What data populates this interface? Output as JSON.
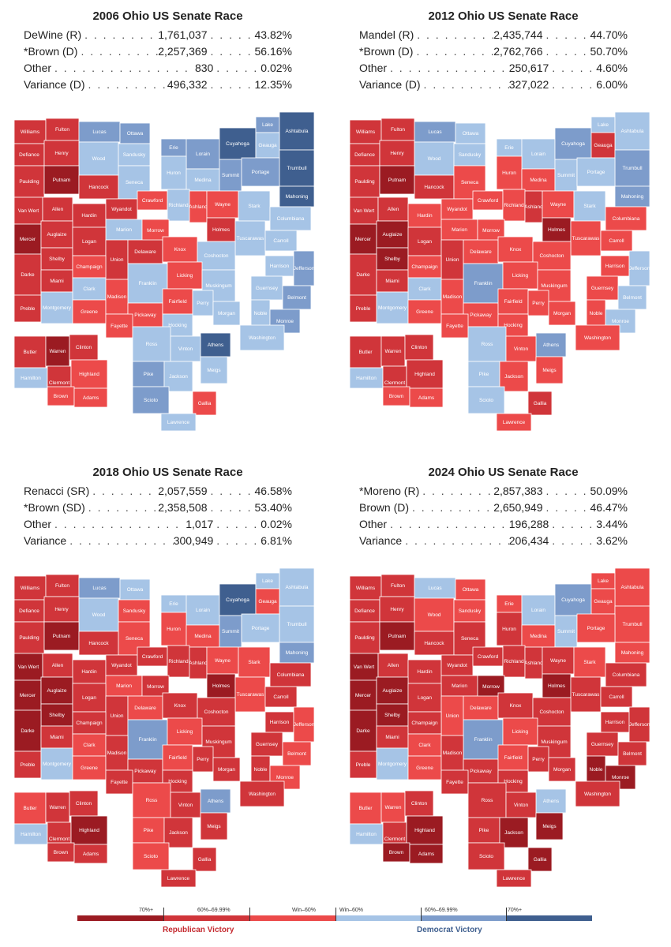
{
  "panels": [
    {
      "title": "2006 Ohio US Senate Race",
      "rows": [
        {
          "name": "DeWine (R)",
          "votes": "1,761,037",
          "pct": "43.82%"
        },
        {
          "name": "*Brown (D)",
          "votes": "2,257,369",
          "pct": "56.16%"
        },
        {
          "name": "Other",
          "votes": "830",
          "pct": "0.02%"
        },
        {
          "name": "Variance (D)",
          "votes": "496,332",
          "pct": "12.35%"
        }
      ],
      "counties": {
        "Williams": "r2",
        "Fulton": "r2",
        "Lucas": "d2",
        "Ottawa": "d2",
        "Defiance": "r2",
        "Henry": "r2",
        "Wood": "d1",
        "Sandusky": "d1",
        "Erie": "d2",
        "Lorain": "d2",
        "Cuyahoga": "d3",
        "Lake": "d2",
        "Ashtabula": "d3",
        "Geauga": "d1",
        "Trumbull": "d3",
        "Paulding": "r2",
        "Putnam": "r3",
        "Hancock": "r2",
        "Seneca": "d1",
        "Huron": "d1",
        "Medina": "d1",
        "Summit": "d2",
        "Portage": "d2",
        "Mahoning": "d3",
        "Van Wert": "r2",
        "Allen": "r2",
        "Hardin": "r2",
        "Wyandot": "r2",
        "Crawford": "r1",
        "Richland": "d1",
        "Ashland": "r1",
        "Wayne": "r1",
        "Stark": "d1",
        "Columbiana": "d1",
        "Mercer": "r3",
        "Auglaize": "r2",
        "Marion": "d1",
        "Morrow": "r1",
        "Holmes": "r2",
        "Tuscarawas": "d1",
        "Carroll": "d1",
        "Shelby": "r2",
        "Logan": "r2",
        "Union": "r2",
        "Delaware": "r2",
        "Knox": "r1",
        "Coshocton": "d1",
        "Harrison": "d1",
        "Jefferson": "d2",
        "Darke": "r2",
        "Miami": "r2",
        "Champaign": "r1",
        "Franklin": "d1",
        "Licking": "r1",
        "Muskingum": "d1",
        "Guernsey": "d1",
        "Belmont": "d2",
        "Clark": "d1",
        "Preble": "r2",
        "Montgomery": "d1",
        "Greene": "r1",
        "Madison": "r1",
        "Pickaway": "r1",
        "Fairfield": "r1",
        "Perry": "d1",
        "Morgan": "d1",
        "Noble": "d1",
        "Monroe": "d2",
        "Fayette": "r1",
        "Hocking": "d1",
        "Washington": "d1",
        "Butler": "r2",
        "Warren": "r3",
        "Clinton": "r2",
        "Ross": "d1",
        "Athens": "d3",
        "Vinton": "d1",
        "Hamilton": "d1",
        "Clermont": "r2",
        "Highland": "r1",
        "Pike": "d2",
        "Jackson": "d1",
        "Meigs": "d1",
        "Brown": "r1",
        "Adams": "r1",
        "Scioto": "d2",
        "Gallia": "r1",
        "Lawrence": "d1"
      }
    },
    {
      "title": "2012 Ohio US Senate Race",
      "rows": [
        {
          "name": "Mandel (R)",
          "votes": "2,435,744",
          "pct": "44.70%"
        },
        {
          "name": "*Brown (D)",
          "votes": "2,762,766",
          "pct": "50.70%"
        },
        {
          "name": "Other",
          "votes": "250,617",
          "pct": "4.60%"
        },
        {
          "name": "Variance (D)",
          "votes": "327,022",
          "pct": "6.00%"
        }
      ],
      "counties": {
        "Williams": "r2",
        "Fulton": "r2",
        "Lucas": "d2",
        "Ottawa": "d1",
        "Defiance": "r2",
        "Henry": "r2",
        "Wood": "d1",
        "Sandusky": "d1",
        "Erie": "d1",
        "Lorain": "d1",
        "Cuyahoga": "d2",
        "Lake": "d1",
        "Ashtabula": "d1",
        "Geauga": "r2",
        "Trumbull": "d2",
        "Paulding": "r2",
        "Putnam": "r3",
        "Hancock": "r2",
        "Seneca": "r1",
        "Huron": "r1",
        "Medina": "r1",
        "Summit": "d1",
        "Portage": "d1",
        "Mahoning": "d2",
        "Van Wert": "r2",
        "Allen": "r2",
        "Hardin": "r1",
        "Wyandot": "r1",
        "Crawford": "r1",
        "Richland": "r1",
        "Ashland": "r2",
        "Wayne": "r1",
        "Stark": "d1",
        "Columbiana": "r1",
        "Mercer": "r3",
        "Auglaize": "r3",
        "Marion": "r1",
        "Morrow": "r1",
        "Holmes": "r3",
        "Tuscarawas": "r1",
        "Carroll": "r1",
        "Shelby": "r3",
        "Logan": "r2",
        "Union": "r2",
        "Delaware": "r1",
        "Knox": "r1",
        "Coshocton": "r1",
        "Harrison": "r1",
        "Jefferson": "d1",
        "Darke": "r2",
        "Miami": "r2",
        "Champaign": "r1",
        "Franklin": "d2",
        "Licking": "r1",
        "Muskingum": "r1",
        "Guernsey": "r1",
        "Belmont": "d1",
        "Clark": "d1",
        "Preble": "r2",
        "Montgomery": "d1",
        "Greene": "r1",
        "Madison": "r1",
        "Pickaway": "r1",
        "Fairfield": "r1",
        "Perry": "r1",
        "Morgan": "r1",
        "Noble": "r1",
        "Monroe": "d1",
        "Fayette": "r1",
        "Hocking": "r1",
        "Washington": "r1",
        "Butler": "r2",
        "Warren": "r2",
        "Clinton": "r2",
        "Ross": "d1",
        "Athens": "d2",
        "Vinton": "r1",
        "Hamilton": "d1",
        "Clermont": "r2",
        "Highland": "r2",
        "Pike": "d1",
        "Jackson": "r1",
        "Meigs": "r1",
        "Brown": "r1",
        "Adams": "r1",
        "Scioto": "d1",
        "Gallia": "r2",
        "Lawrence": "r1"
      }
    },
    {
      "title": "2018 Ohio US Senate Race",
      "rows": [
        {
          "name": "Renacci (SR)",
          "votes": "2,057,559",
          "pct": "46.58%"
        },
        {
          "name": "*Brown (SD)",
          "votes": "2,358,508",
          "pct": "53.40%"
        },
        {
          "name": "Other",
          "votes": "1,017",
          "pct": "0.02%"
        },
        {
          "name": "Variance",
          "votes": "300,949",
          "pct": "6.81%"
        }
      ],
      "counties": {
        "Williams": "r2",
        "Fulton": "r2",
        "Lucas": "d2",
        "Ottawa": "d1",
        "Defiance": "r2",
        "Henry": "r2",
        "Wood": "d1",
        "Sandusky": "r1",
        "Erie": "d1",
        "Lorain": "d1",
        "Cuyahoga": "d3",
        "Lake": "d1",
        "Ashtabula": "d1",
        "Geauga": "r1",
        "Trumbull": "d1",
        "Paulding": "r2",
        "Putnam": "r3",
        "Hancock": "r2",
        "Seneca": "r1",
        "Huron": "r1",
        "Medina": "r1",
        "Summit": "d2",
        "Portage": "d1",
        "Mahoning": "d2",
        "Van Wert": "r3",
        "Allen": "r2",
        "Hardin": "r2",
        "Wyandot": "r2",
        "Crawford": "r2",
        "Richland": "r2",
        "Ashland": "r2",
        "Wayne": "r1",
        "Stark": "r1",
        "Columbiana": "r2",
        "Mercer": "r3",
        "Auglaize": "r3",
        "Marion": "r1",
        "Morrow": "r2",
        "Holmes": "r3",
        "Tuscarawas": "r1",
        "Carroll": "r2",
        "Shelby": "r3",
        "Logan": "r2",
        "Union": "r2",
        "Delaware": "r1",
        "Knox": "r2",
        "Coshocton": "r2",
        "Harrison": "r2",
        "Jefferson": "r1",
        "Darke": "r3",
        "Miami": "r2",
        "Champaign": "r2",
        "Franklin": "d2",
        "Licking": "r1",
        "Muskingum": "r2",
        "Guernsey": "r2",
        "Belmont": "r1",
        "Clark": "r1",
        "Preble": "r2",
        "Montgomery": "d1",
        "Greene": "r1",
        "Madison": "r2",
        "Pickaway": "r2",
        "Fairfield": "r1",
        "Perry": "r2",
        "Morgan": "r2",
        "Noble": "r2",
        "Monroe": "r1",
        "Fayette": "r2",
        "Hocking": "r2",
        "Washington": "r2",
        "Butler": "r1",
        "Warren": "r2",
        "Clinton": "r2",
        "Ross": "r1",
        "Athens": "d2",
        "Vinton": "r2",
        "Hamilton": "d1",
        "Clermont": "r2",
        "Highland": "r3",
        "Pike": "r1",
        "Jackson": "r2",
        "Meigs": "r2",
        "Brown": "r2",
        "Adams": "r2",
        "Scioto": "r1",
        "Gallia": "r2",
        "Lawrence": "r2"
      }
    },
    {
      "title": "2024 Ohio US Senate Race",
      "rows": [
        {
          "name": "*Moreno (R)",
          "votes": "2,857,383",
          "pct": "50.09%"
        },
        {
          "name": "Brown (D)",
          "votes": "2,650,949",
          "pct": "46.47%"
        },
        {
          "name": "Other",
          "votes": "196,288",
          "pct": "3.44%"
        },
        {
          "name": "Variance",
          "votes": "206,434",
          "pct": "3.62%"
        }
      ],
      "counties": {
        "Williams": "r2",
        "Fulton": "r2",
        "Lucas": "d1",
        "Ottawa": "r1",
        "Defiance": "r2",
        "Henry": "r2",
        "Wood": "r1",
        "Sandusky": "r1",
        "Erie": "r1",
        "Lorain": "d1",
        "Cuyahoga": "d2",
        "Lake": "r1",
        "Ashtabula": "r1",
        "Geauga": "r1",
        "Trumbull": "r1",
        "Paulding": "r2",
        "Putnam": "r3",
        "Hancock": "r2",
        "Seneca": "r2",
        "Huron": "r2",
        "Medina": "r1",
        "Summit": "d1",
        "Portage": "r1",
        "Mahoning": "r1",
        "Van Wert": "r3",
        "Allen": "r2",
        "Hardin": "r2",
        "Wyandot": "r2",
        "Crawford": "r2",
        "Richland": "r2",
        "Ashland": "r2",
        "Wayne": "r2",
        "Stark": "r1",
        "Columbiana": "r2",
        "Mercer": "r3",
        "Auglaize": "r3",
        "Marion": "r2",
        "Morrow": "r3",
        "Holmes": "r3",
        "Tuscarawas": "r2",
        "Carroll": "r2",
        "Shelby": "r3",
        "Logan": "r2",
        "Union": "r1",
        "Delaware": "r1",
        "Knox": "r2",
        "Coshocton": "r2",
        "Harrison": "r2",
        "Jefferson": "r2",
        "Darke": "r3",
        "Miami": "r2",
        "Champaign": "r2",
        "Franklin": "d2",
        "Licking": "r1",
        "Muskingum": "r2",
        "Guernsey": "r2",
        "Belmont": "r2",
        "Clark": "r1",
        "Preble": "r2",
        "Montgomery": "d1",
        "Greene": "r1",
        "Madison": "r2",
        "Pickaway": "r2",
        "Fairfield": "r1",
        "Perry": "r2",
        "Morgan": "r2",
        "Noble": "r3",
        "Monroe": "r3",
        "Fayette": "r2",
        "Hocking": "r2",
        "Washington": "r2",
        "Butler": "r1",
        "Warren": "r1",
        "Clinton": "r2",
        "Ross": "r2",
        "Athens": "d1",
        "Vinton": "r2",
        "Hamilton": "d1",
        "Clermont": "r2",
        "Highland": "r3",
        "Pike": "r2",
        "Jackson": "r3",
        "Meigs": "r3",
        "Brown": "r3",
        "Adams": "r3",
        "Scioto": "r2",
        "Gallia": "r3",
        "Lawrence": "r2"
      }
    }
  ],
  "legend": {
    "bins": [
      {
        "label": "70%+",
        "color": "#9b1b22"
      },
      {
        "label": "60%–69.99%",
        "color": "#d0353a"
      },
      {
        "label": "Win–60%",
        "color": "#ec4a4a"
      },
      {
        "label": "Win–60%",
        "color": "#a6c4e6"
      },
      {
        "label": "60%–69.99%",
        "color": "#7d9ccb"
      },
      {
        "label": "70%+",
        "color": "#3f5f8f"
      }
    ],
    "republican_label": "Republican Victory",
    "democrat_label": "Democrat Victory",
    "republican_color": "#c52a30",
    "democrat_color": "#3f5f8f"
  },
  "shade_colors": {
    "r3": "#9b1b22",
    "r2": "#d0353a",
    "r1": "#ec4a4a",
    "d1": "#a6c4e6",
    "d2": "#7d9ccb",
    "d3": "#3f5f8f"
  }
}
